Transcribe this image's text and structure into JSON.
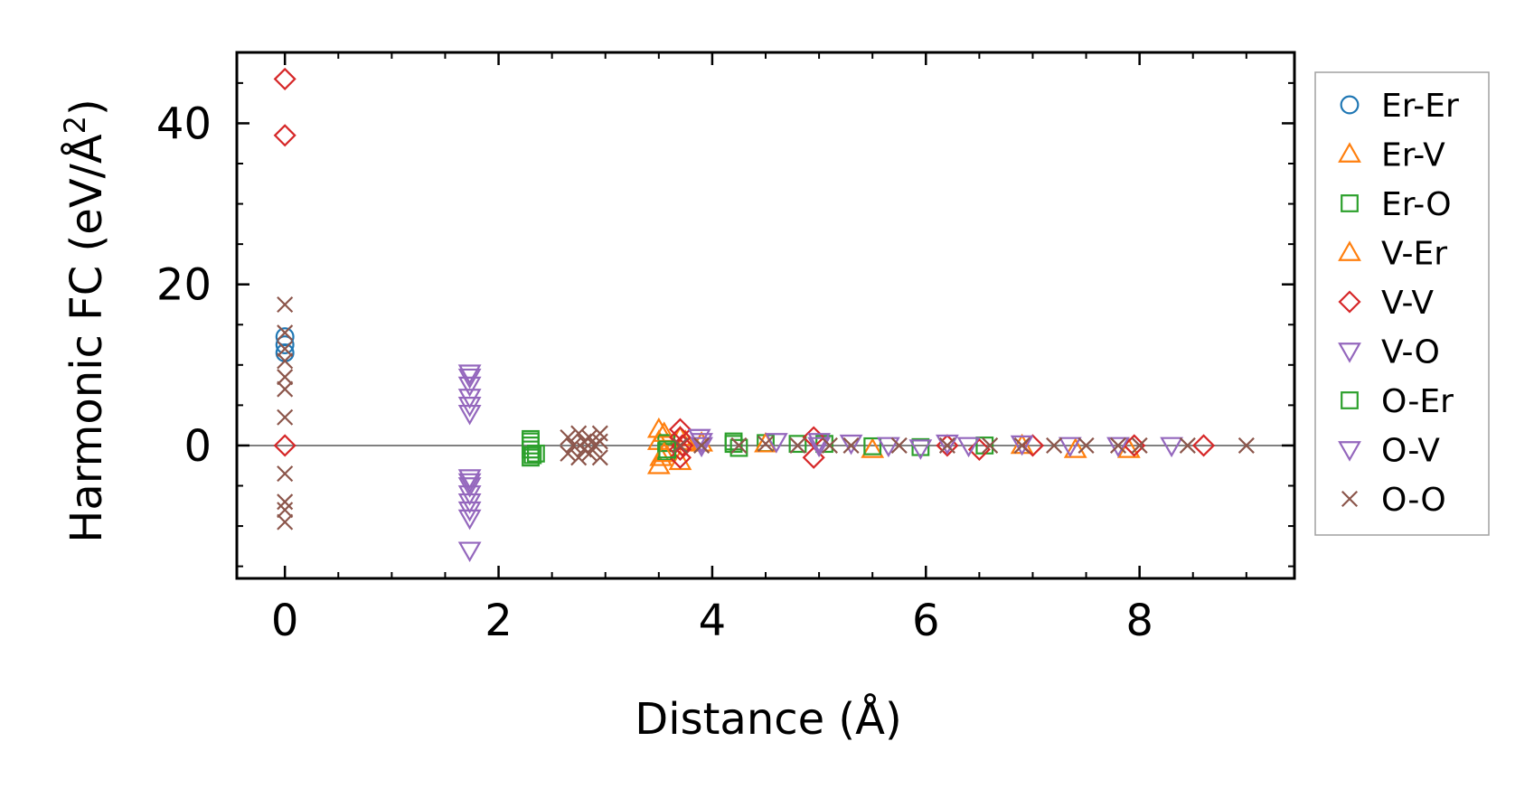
{
  "chart_data": {
    "type": "scatter",
    "xlabel": "Distance (Å)",
    "ylabel": "Harmonic FC (eV/Å",
    "ylabel_sup": "2",
    "ylabel_close": ")",
    "xlim": [
      -0.45,
      9.45
    ],
    "ylim": [
      -16.5,
      48.8
    ],
    "xticks": [
      0,
      2,
      4,
      6,
      8
    ],
    "yticks": [
      0,
      20,
      40
    ],
    "xtick_labels": [
      "0",
      "2",
      "4",
      "6",
      "8"
    ],
    "ytick_labels": [
      "0",
      "20",
      "40"
    ],
    "zero_line": true,
    "grid": false,
    "legend_position": "right",
    "series": [
      {
        "name": "Er-Er",
        "marker": "circle",
        "color": "#1f77b4",
        "points": [
          [
            0,
            13.5
          ],
          [
            0,
            12.5
          ],
          [
            0,
            11.5
          ]
        ]
      },
      {
        "name": "Er-V",
        "marker": "triangle-up",
        "color": "#ff7f0e",
        "points": [
          [
            3.5,
            2.0
          ],
          [
            3.5,
            0.5
          ],
          [
            3.52,
            -1.5
          ],
          [
            3.5,
            -2.5
          ],
          [
            3.7,
            1.0
          ],
          [
            3.7,
            -2.0
          ],
          [
            3.9,
            0.3
          ],
          [
            5.5,
            -0.5
          ],
          [
            6.9,
            0.0
          ],
          [
            7.4,
            -0.5
          ],
          [
            7.9,
            -0.5
          ]
        ]
      },
      {
        "name": "Er-O",
        "marker": "square",
        "color": "#2ca02c",
        "points": [
          [
            2.3,
            0.5
          ],
          [
            2.3,
            0.0
          ],
          [
            2.3,
            -0.5
          ],
          [
            2.3,
            -1.5
          ],
          [
            2.35,
            -1.0
          ],
          [
            3.57,
            0.3
          ],
          [
            3.57,
            -0.8
          ],
          [
            4.2,
            0.5
          ],
          [
            4.25,
            -0.3
          ],
          [
            4.5,
            0.3
          ],
          [
            4.8,
            0.2
          ],
          [
            5.05,
            0.2
          ],
          [
            5.5,
            -0.1
          ],
          [
            5.95,
            -0.2
          ],
          [
            6.55,
            0.0
          ]
        ]
      },
      {
        "name": "V-Er",
        "marker": "triangle-up",
        "color": "#ff7f0e",
        "points": [
          [
            3.55,
            1.5
          ],
          [
            3.55,
            -1.0
          ],
          [
            3.75,
            0.5
          ],
          [
            4.5,
            0.2
          ]
        ]
      },
      {
        "name": "V-V",
        "marker": "diamond",
        "color": "#d62728",
        "points": [
          [
            0,
            45.5
          ],
          [
            0,
            38.5
          ],
          [
            0,
            0.0
          ],
          [
            3.7,
            2.0
          ],
          [
            3.7,
            1.0
          ],
          [
            3.7,
            -0.5
          ],
          [
            3.7,
            -1.5
          ],
          [
            3.72,
            0.0
          ],
          [
            4.95,
            1.0
          ],
          [
            4.95,
            -1.5
          ],
          [
            6.2,
            0.0
          ],
          [
            6.5,
            -0.5
          ],
          [
            7.0,
            0.0
          ],
          [
            7.95,
            0.0
          ],
          [
            8.6,
            0.0
          ]
        ]
      },
      {
        "name": "V-O",
        "marker": "triangle-down",
        "color": "#9467bd",
        "points": [
          [
            1.73,
            8.5
          ],
          [
            1.73,
            7.5
          ],
          [
            1.73,
            6.0
          ],
          [
            1.73,
            5.0
          ],
          [
            1.73,
            4.0
          ],
          [
            1.73,
            -4.0
          ],
          [
            1.73,
            -5.0
          ],
          [
            1.73,
            -6.0
          ],
          [
            1.73,
            -7.0
          ],
          [
            1.73,
            -8.0
          ],
          [
            1.73,
            -9.0
          ],
          [
            1.73,
            -13.0
          ],
          [
            3.88,
            1.0
          ],
          [
            3.9,
            0.0
          ],
          [
            4.6,
            0.5
          ],
          [
            5.0,
            0.0
          ],
          [
            5.3,
            0.3
          ],
          [
            5.65,
            0.0
          ],
          [
            5.95,
            -0.3
          ],
          [
            6.4,
            0.0
          ],
          [
            6.9,
            0.2
          ],
          [
            7.35,
            0.0
          ],
          [
            7.8,
            0.0
          ],
          [
            8.3,
            0.0
          ]
        ]
      },
      {
        "name": "O-Er",
        "marker": "square",
        "color": "#2ca02c",
        "points": [
          [
            2.3,
            0.8
          ],
          [
            2.32,
            -1.2
          ],
          [
            3.58,
            -0.5
          ],
          [
            4.2,
            0.2
          ]
        ]
      },
      {
        "name": "O-V",
        "marker": "triangle-down",
        "color": "#9467bd",
        "points": [
          [
            1.73,
            9.0
          ],
          [
            1.73,
            -4.5
          ],
          [
            3.9,
            0.5
          ],
          [
            5.0,
            0.5
          ],
          [
            6.2,
            0.3
          ]
        ]
      },
      {
        "name": "O-O",
        "marker": "x",
        "color": "#8c564b",
        "points": [
          [
            0,
            17.5
          ],
          [
            0,
            14.0
          ],
          [
            0,
            12.0
          ],
          [
            0,
            10.5
          ],
          [
            0,
            8.5
          ],
          [
            0,
            7.0
          ],
          [
            0,
            3.5
          ],
          [
            0,
            -3.5
          ],
          [
            0,
            -7.0
          ],
          [
            0,
            -8.0
          ],
          [
            0,
            -9.5
          ],
          [
            2.65,
            1.0
          ],
          [
            2.65,
            -1.0
          ],
          [
            2.7,
            0.0
          ],
          [
            2.75,
            1.5
          ],
          [
            2.75,
            -1.5
          ],
          [
            2.8,
            0.5
          ],
          [
            2.8,
            -0.5
          ],
          [
            2.85,
            1.0
          ],
          [
            2.85,
            -1.0
          ],
          [
            2.9,
            0.0
          ],
          [
            2.95,
            1.5
          ],
          [
            2.95,
            -1.5
          ],
          [
            2.95,
            0.5
          ],
          [
            3.7,
            0.0
          ],
          [
            3.9,
            0.0
          ],
          [
            4.25,
            0.0
          ],
          [
            4.5,
            0.2
          ],
          [
            4.8,
            0.0
          ],
          [
            5.1,
            0.0
          ],
          [
            5.3,
            0.0
          ],
          [
            5.75,
            0.0
          ],
          [
            6.2,
            0.0
          ],
          [
            6.6,
            0.0
          ],
          [
            6.9,
            0.0
          ],
          [
            7.2,
            0.0
          ],
          [
            7.5,
            0.0
          ],
          [
            7.8,
            0.0
          ],
          [
            8.0,
            0.0
          ],
          [
            8.45,
            0.0
          ],
          [
            9.0,
            0.0
          ]
        ]
      }
    ]
  }
}
